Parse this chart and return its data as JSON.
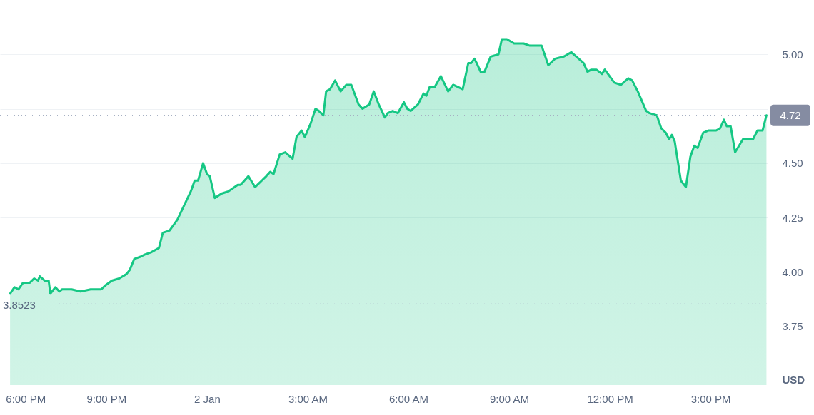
{
  "chart_data": {
    "type": "area",
    "ylabel": "USD",
    "grid": "y",
    "marker": "none",
    "line_style": "solid",
    "xlim": [
      "--01-01T17:50",
      "--01-02T16:42"
    ],
    "xticks": [
      {
        "value": "--01-01T18:00",
        "label": "6:00 PM"
      },
      {
        "value": "--01-01T21:00",
        "label": "9:00 PM"
      },
      {
        "value": "--01-02T00:00",
        "label": "2 Jan"
      },
      {
        "value": "--01-02T03:00",
        "label": "3:00 AM"
      },
      {
        "value": "--01-02T06:00",
        "label": "6:00 AM"
      },
      {
        "value": "--01-02T09:00",
        "label": "9:00 AM"
      },
      {
        "value": "--01-02T12:00",
        "label": "12:00 PM"
      },
      {
        "value": "--01-02T15:00",
        "label": "3:00 PM"
      }
    ],
    "ylim": [
      3.48,
      5.25
    ],
    "yticks": [
      3.75,
      {
        "value": 4,
        "label": "4.00"
      },
      4.25,
      {
        "value": 4.5,
        "label": "4.50"
      },
      {
        "value": 4.75,
        "label": null
      },
      {
        "value": 5,
        "label": "5.00"
      }
    ],
    "x": [
      "--01-01T18:08",
      "--01-01T18:16",
      "--01-01T18:23",
      "--01-01T18:31",
      "--01-01T18:43",
      "--01-01T18:51",
      "--01-01T18:58",
      "--01-01T19:01",
      "--01-01T19:10",
      "--01-01T19:17",
      "--01-01T19:20",
      "--01-01T19:29",
      "--01-01T19:36",
      "--01-01T19:41",
      "--01-01T19:58",
      "--01-01T20:14",
      "--01-01T20:32",
      "--01-01T20:44",
      "--01-01T20:51",
      "--01-01T20:59",
      "--01-01T21:10",
      "--01-01T21:23",
      "--01-01T21:36",
      "--01-01T21:42",
      "--01-01T21:50",
      "--01-01T22:01",
      "--01-01T22:09",
      "--01-01T22:20",
      "--01-01T22:34",
      "--01-01T22:41",
      "--01-01T22:53",
      "--01-01T23:07",
      "--01-01T23:18",
      "--01-01T23:31",
      "--01-01T23:38",
      "--01-01T23:44",
      "--01-01T23:53",
      "--01-02T00:00",
      "--01-02T00:05",
      "--01-02T00:14",
      "--01-02T00:26",
      "--01-02T00:38",
      "--01-02T00:55",
      "--01-02T01:00",
      "--01-02T01:07",
      "--01-02T01:14",
      "--01-02T01:26",
      "--01-02T01:38",
      "--01-02T01:46",
      "--01-02T01:53",
      "--01-02T01:59",
      "--01-02T02:10",
      "--01-02T02:20",
      "--01-02T02:33",
      "--01-02T02:40",
      "--01-02T02:49",
      "--01-02T02:55",
      "--01-02T03:05",
      "--01-02T03:14",
      "--01-02T03:20",
      "--01-02T03:28",
      "--01-02T03:33",
      "--01-02T03:40",
      "--01-02T03:49",
      "--01-02T03:59",
      "--01-02T04:09",
      "--01-02T04:18",
      "--01-02T04:31",
      "--01-02T04:38",
      "--01-02T04:50",
      "--01-02T04:58",
      "--01-02T05:07",
      "--01-02T05:18",
      "--01-02T05:23",
      "--01-02T05:32",
      "--01-02T05:41",
      "--01-02T05:52",
      "--01-02T05:58",
      "--01-02T06:04",
      "--01-02T06:17",
      "--01-02T06:27",
      "--01-02T06:32",
      "--01-02T06:38",
      "--01-02T06:47",
      "--01-02T06:58",
      "--01-02T07:11",
      "--01-02T07:20",
      "--01-02T07:37",
      "--01-02T07:47",
      "--01-02T07:52",
      "--01-02T07:58",
      "--01-02T08:02",
      "--01-02T08:09",
      "--01-02T08:16",
      "--01-02T08:27",
      "--01-02T08:41",
      "--01-02T08:47",
      "--01-02T08:56",
      "--01-02T09:09",
      "--01-02T09:26",
      "--01-02T09:37",
      "--01-02T09:58",
      "--01-02T10:10",
      "--01-02T10:22",
      "--01-02T10:38",
      "--01-02T10:51",
      "--01-02T11:00",
      "--01-02T11:13",
      "--01-02T11:20",
      "--01-02T11:27",
      "--01-02T11:36",
      "--01-02T11:46",
      "--01-02T11:51",
      "--01-02T12:08",
      "--01-02T12:20",
      "--01-02T12:33",
      "--01-02T12:40",
      "--01-02T12:50",
      "--01-02T13:05",
      "--01-02T13:11",
      "--01-02T13:24",
      "--01-02T13:32",
      "--01-02T13:40",
      "--01-02T13:46",
      "--01-02T13:51",
      "--01-02T13:56",
      "--01-02T14:07",
      "--01-02T14:16",
      "--01-02T14:24",
      "--01-02T14:31",
      "--01-02T14:37",
      "--01-02T14:47",
      "--01-02T14:56",
      "--01-02T15:10",
      "--01-02T15:17",
      "--01-02T15:24",
      "--01-02T15:29",
      "--01-02T15:36",
      "--01-02T15:44",
      "--01-02T15:58",
      "--01-02T16:16",
      "--01-02T16:24",
      "--01-02T16:33",
      "--01-02T16:40"
    ],
    "series": [
      {
        "color": "#16c784",
        "values": [
          3.9,
          3.93,
          3.92,
          3.95,
          3.95,
          3.97,
          3.96,
          3.98,
          3.96,
          3.96,
          3.9,
          3.93,
          3.91,
          3.92,
          3.92,
          3.91,
          3.92,
          3.92,
          3.92,
          3.94,
          3.96,
          3.97,
          3.99,
          4.01,
          4.06,
          4.07,
          4.08,
          4.09,
          4.11,
          4.18,
          4.19,
          4.24,
          4.3,
          4.37,
          4.42,
          4.42,
          4.5,
          4.45,
          4.44,
          4.34,
          4.36,
          4.37,
          4.4,
          4.4,
          4.42,
          4.44,
          4.39,
          4.42,
          4.44,
          4.46,
          4.45,
          4.54,
          4.55,
          4.52,
          4.62,
          4.65,
          4.62,
          4.68,
          4.75,
          4.74,
          4.72,
          4.83,
          4.84,
          4.88,
          4.83,
          4.86,
          4.86,
          4.77,
          4.75,
          4.77,
          4.83,
          4.77,
          4.71,
          4.73,
          4.74,
          4.73,
          4.78,
          4.75,
          4.74,
          4.77,
          4.82,
          4.81,
          4.85,
          4.85,
          4.9,
          4.83,
          4.86,
          4.84,
          4.96,
          4.96,
          4.98,
          4.96,
          4.92,
          4.92,
          4.99,
          5.0,
          5.07,
          5.07,
          5.05,
          5.05,
          5.04,
          5.04,
          4.95,
          4.98,
          4.99,
          5.01,
          4.99,
          4.96,
          4.92,
          4.93,
          4.93,
          4.91,
          4.93,
          4.87,
          4.86,
          4.89,
          4.88,
          4.83,
          4.74,
          4.73,
          4.72,
          4.66,
          4.64,
          4.61,
          4.63,
          4.6,
          4.42,
          4.39,
          4.53,
          4.58,
          4.57,
          4.64,
          4.65,
          4.65,
          4.66,
          4.7,
          4.67,
          4.67,
          4.55,
          4.61,
          4.61,
          4.65,
          4.65,
          4.72
        ]
      }
    ],
    "ref_lines": [
      {
        "axis": "y",
        "value": 4.72,
        "label": "4.72",
        "line_style": "dotted"
      },
      {
        "axis": "y",
        "value": 3.8523,
        "label": "3.8523",
        "line_style": "dotted"
      }
    ]
  }
}
